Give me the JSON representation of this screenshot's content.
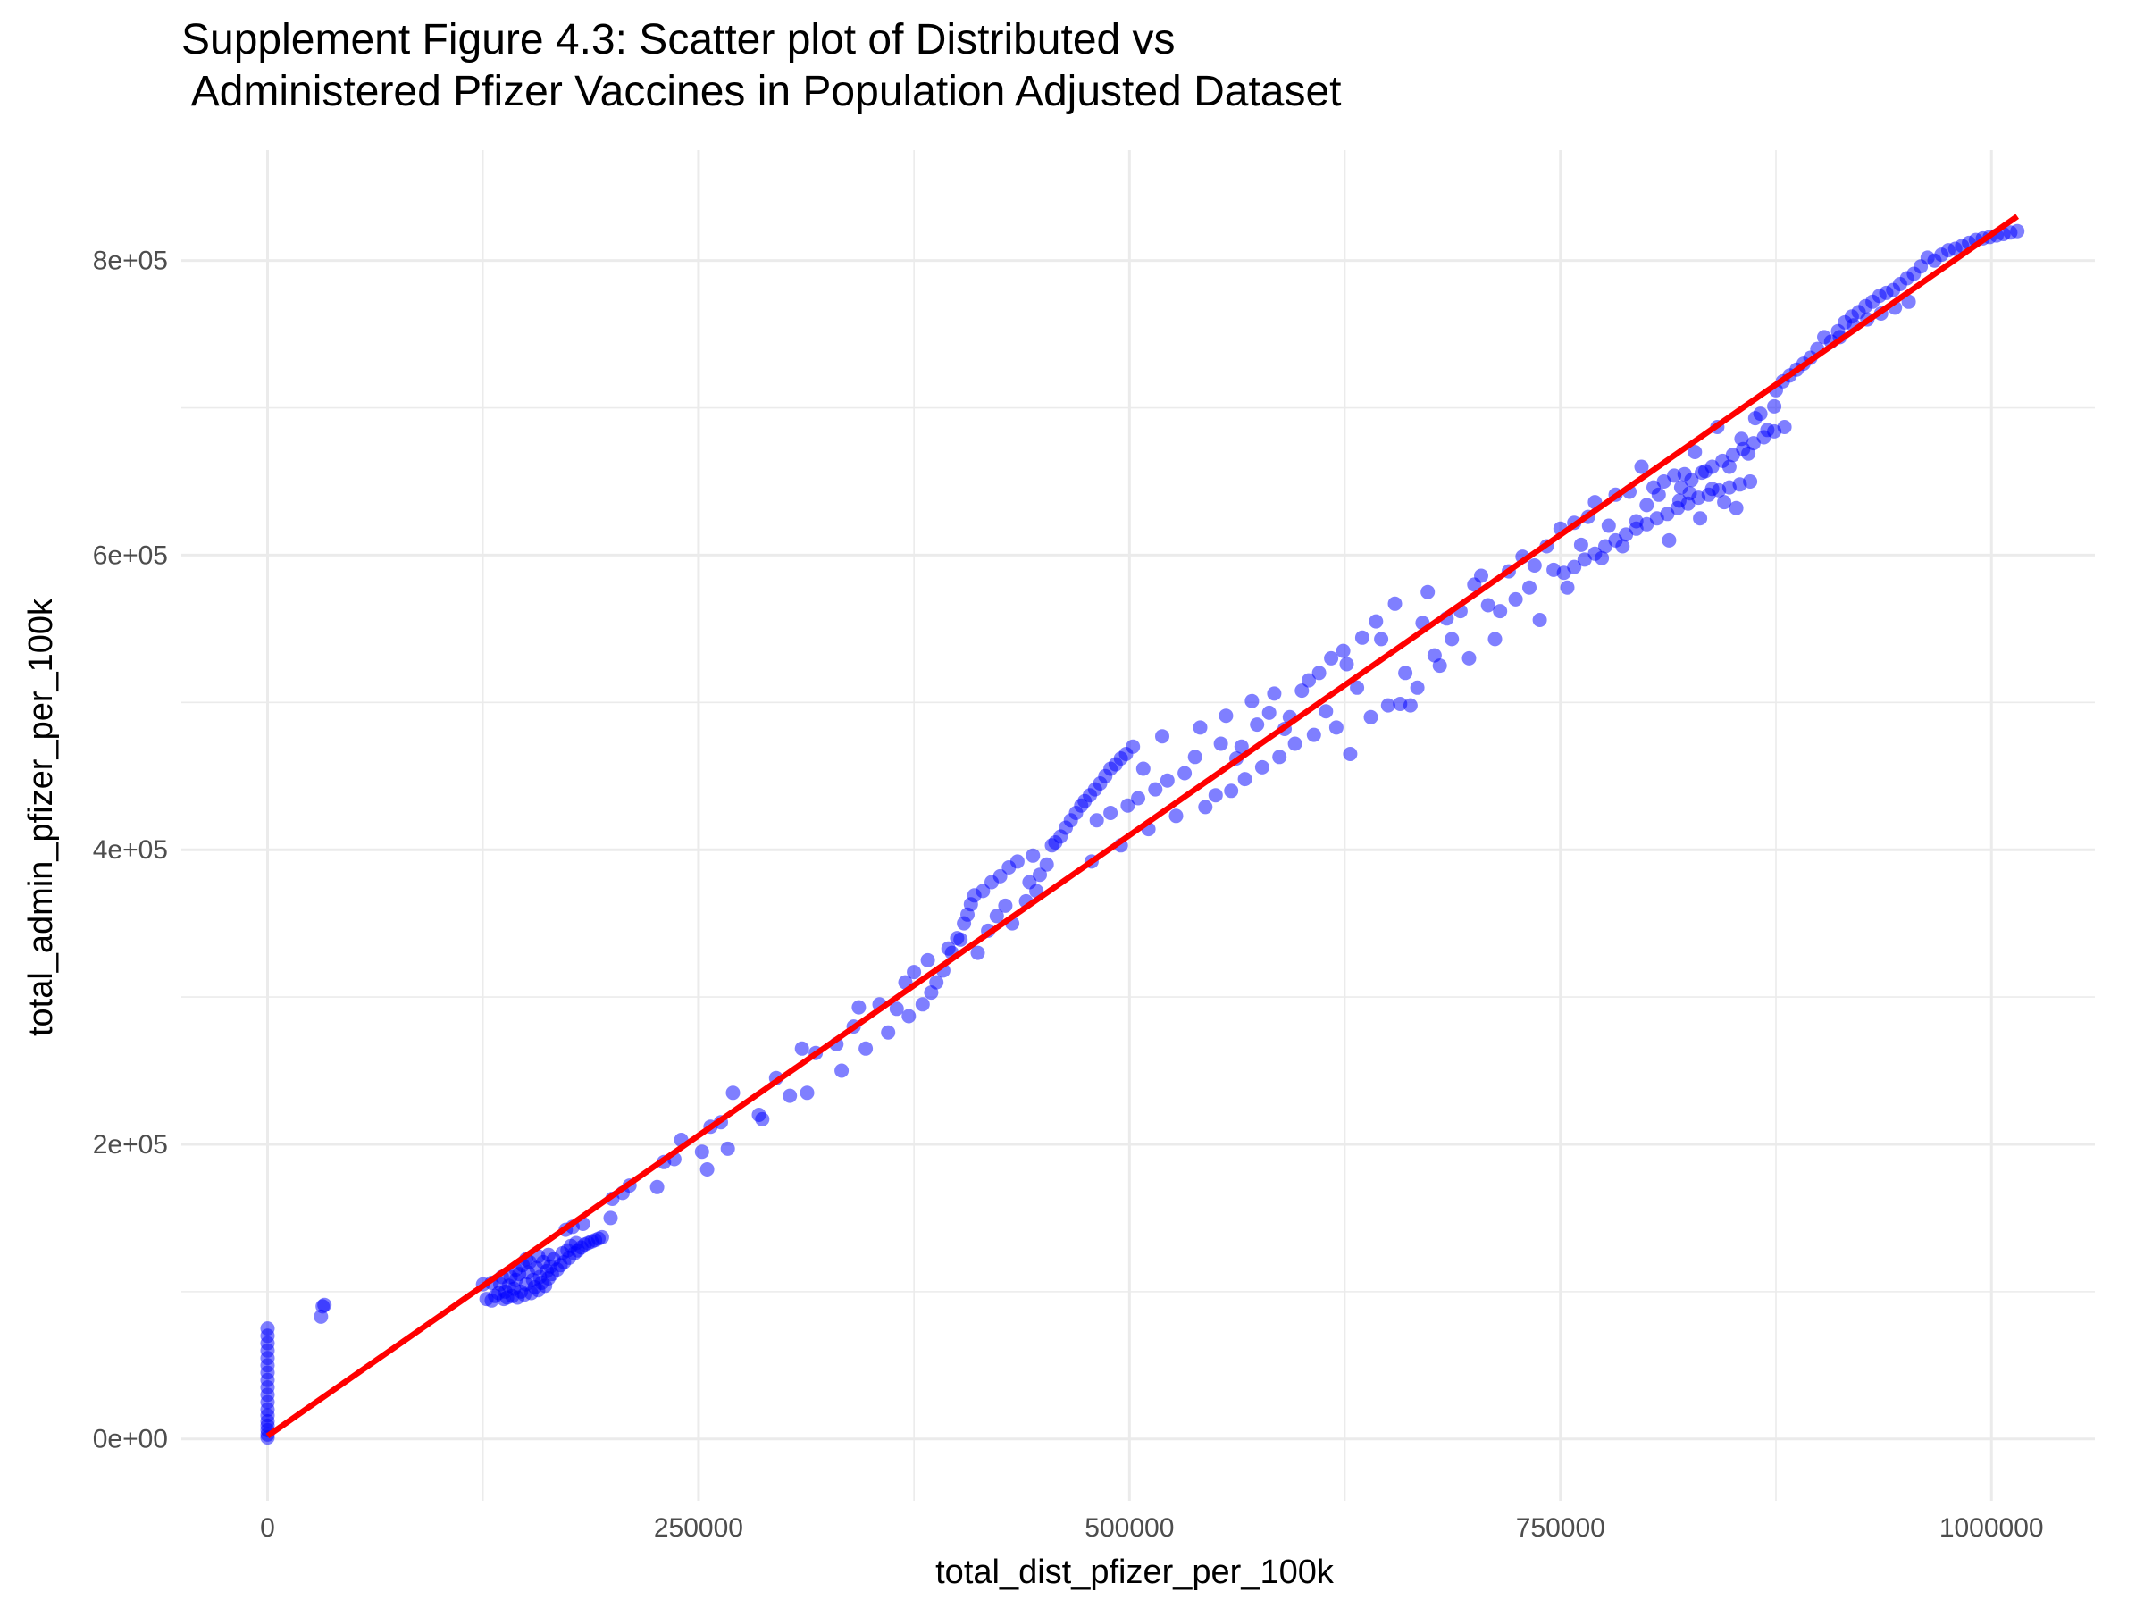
{
  "chart_data": {
    "type": "scatter",
    "title_lines": [
      "Supplement Figure 4.3: Scatter plot of Distributed vs",
      " Administered Pfizer Vaccines in Population Adjusted Dataset"
    ],
    "xlabel": "total_dist_pfizer_per_100k",
    "ylabel": "total_admin_pfizer_per_100k",
    "xlim": [
      -50000,
      1060000
    ],
    "ylim": [
      -42000,
      875000
    ],
    "x_ticks": [
      0,
      250000,
      500000,
      750000,
      1000000
    ],
    "x_tick_labels": [
      "0",
      "250000",
      "500000",
      "750000",
      "1000000"
    ],
    "y_ticks": [
      0,
      200000,
      400000,
      600000,
      800000
    ],
    "y_tick_labels": [
      "0e+00",
      "2e+05",
      "4e+05",
      "6e+05",
      "8e+05"
    ],
    "grid": true,
    "legend": "none",
    "colors": {
      "points": "#0000ff",
      "fit_line": "#ff0000",
      "grid": "#ebebeb"
    },
    "fit_line": {
      "x": [
        0,
        1015000
      ],
      "y": [
        2000,
        830000
      ]
    },
    "points": [
      [
        0,
        1000
      ],
      [
        0,
        3000
      ],
      [
        0,
        6000
      ],
      [
        0,
        9000
      ],
      [
        0,
        12000
      ],
      [
        0,
        16000
      ],
      [
        0,
        20000
      ],
      [
        0,
        25000
      ],
      [
        0,
        30000
      ],
      [
        0,
        35000
      ],
      [
        0,
        40000
      ],
      [
        0,
        45000
      ],
      [
        0,
        50000
      ],
      [
        0,
        55000
      ],
      [
        0,
        60000
      ],
      [
        0,
        65000
      ],
      [
        0,
        70000
      ],
      [
        0,
        75000
      ],
      [
        31000,
        83000
      ],
      [
        32000,
        90000
      ],
      [
        33000,
        91000
      ],
      [
        125000,
        105000
      ],
      [
        127000,
        95000
      ],
      [
        130000,
        94000
      ],
      [
        132000,
        97000
      ],
      [
        134000,
        99000
      ],
      [
        135000,
        105000
      ],
      [
        137000,
        95000
      ],
      [
        138000,
        100000
      ],
      [
        139000,
        96000
      ],
      [
        140000,
        104000
      ],
      [
        141000,
        110000
      ],
      [
        142000,
        97000
      ],
      [
        143000,
        102000
      ],
      [
        144000,
        108000
      ],
      [
        145000,
        96000
      ],
      [
        146000,
        112000
      ],
      [
        147000,
        100000
      ],
      [
        148000,
        118000
      ],
      [
        149000,
        98000
      ],
      [
        150000,
        105000
      ],
      [
        151000,
        113000
      ],
      [
        152000,
        120000
      ],
      [
        153000,
        99000
      ],
      [
        154000,
        108000
      ],
      [
        155000,
        103000
      ],
      [
        156000,
        116000
      ],
      [
        157000,
        101000
      ],
      [
        158000,
        110000
      ],
      [
        159000,
        106000
      ],
      [
        160000,
        120000
      ],
      [
        161000,
        104000
      ],
      [
        162000,
        114000
      ],
      [
        163000,
        109000
      ],
      [
        164000,
        117000
      ],
      [
        165000,
        112000
      ],
      [
        166000,
        122000
      ],
      [
        168000,
        115000
      ],
      [
        170000,
        118000
      ],
      [
        171000,
        126000
      ],
      [
        172000,
        120000
      ],
      [
        173000,
        142000
      ],
      [
        174000,
        128000
      ],
      [
        175000,
        123000
      ],
      [
        176000,
        131000
      ],
      [
        177000,
        144000
      ],
      [
        178000,
        126000
      ],
      [
        179000,
        133000
      ],
      [
        180000,
        128000
      ],
      [
        182000,
        130000
      ],
      [
        183000,
        146000
      ],
      [
        184000,
        132000
      ],
      [
        186000,
        133000
      ],
      [
        188000,
        134000
      ],
      [
        190000,
        135000
      ],
      [
        192000,
        136000
      ],
      [
        194000,
        137000
      ],
      [
        130000,
        106000
      ],
      [
        136000,
        110000
      ],
      [
        144000,
        115000
      ],
      [
        150000,
        122000
      ],
      [
        157000,
        124000
      ],
      [
        163000,
        125000
      ],
      [
        199000,
        150000
      ],
      [
        200000,
        163000
      ],
      [
        206000,
        167000
      ],
      [
        210000,
        172000
      ],
      [
        226000,
        171000
      ],
      [
        230000,
        188000
      ],
      [
        236000,
        190000
      ],
      [
        240000,
        203000
      ],
      [
        252000,
        195000
      ],
      [
        255000,
        183000
      ],
      [
        257000,
        212000
      ],
      [
        263000,
        215000
      ],
      [
        267000,
        197000
      ],
      [
        270000,
        235000
      ],
      [
        285000,
        220000
      ],
      [
        287000,
        217000
      ],
      [
        295000,
        245000
      ],
      [
        303000,
        233000
      ],
      [
        310000,
        265000
      ],
      [
        313000,
        235000
      ],
      [
        318000,
        262000
      ],
      [
        330000,
        268000
      ],
      [
        333000,
        250000
      ],
      [
        340000,
        280000
      ],
      [
        343000,
        293000
      ],
      [
        347000,
        265000
      ],
      [
        355000,
        295000
      ],
      [
        360000,
        276000
      ],
      [
        365000,
        292000
      ],
      [
        370000,
        310000
      ],
      [
        372000,
        287000
      ],
      [
        375000,
        317000
      ],
      [
        380000,
        295000
      ],
      [
        383000,
        325000
      ],
      [
        385000,
        303000
      ],
      [
        388000,
        310000
      ],
      [
        392000,
        318000
      ],
      [
        395000,
        333000
      ],
      [
        397000,
        330000
      ],
      [
        400000,
        340000
      ],
      [
        402000,
        339000
      ],
      [
        404000,
        350000
      ],
      [
        406000,
        356000
      ],
      [
        408000,
        363000
      ],
      [
        410000,
        369000
      ],
      [
        412000,
        330000
      ],
      [
        415000,
        372000
      ],
      [
        418000,
        345000
      ],
      [
        420000,
        378000
      ],
      [
        423000,
        355000
      ],
      [
        425000,
        382000
      ],
      [
        428000,
        362000
      ],
      [
        430000,
        388000
      ],
      [
        432000,
        350000
      ],
      [
        435000,
        392000
      ],
      [
        440000,
        365000
      ],
      [
        442000,
        378000
      ],
      [
        444000,
        396000
      ],
      [
        446000,
        372000
      ],
      [
        448000,
        383000
      ],
      [
        452000,
        390000
      ],
      [
        455000,
        403000
      ],
      [
        457000,
        405000
      ],
      [
        460000,
        409000
      ],
      [
        463000,
        415000
      ],
      [
        466000,
        420000
      ],
      [
        469000,
        425000
      ],
      [
        472000,
        430000
      ],
      [
        474000,
        433000
      ],
      [
        477000,
        437000
      ],
      [
        480000,
        441000
      ],
      [
        483000,
        445000
      ],
      [
        486000,
        450000
      ],
      [
        489000,
        455000
      ],
      [
        492000,
        458000
      ],
      [
        495000,
        462000
      ],
      [
        498000,
        465000
      ],
      [
        502000,
        470000
      ],
      [
        478000,
        392000
      ],
      [
        481000,
        420000
      ],
      [
        489000,
        425000
      ],
      [
        495000,
        403000
      ],
      [
        499000,
        430000
      ],
      [
        505000,
        435000
      ],
      [
        508000,
        455000
      ],
      [
        511000,
        414000
      ],
      [
        515000,
        441000
      ],
      [
        519000,
        477000
      ],
      [
        522000,
        447000
      ],
      [
        527000,
        423000
      ],
      [
        532000,
        452000
      ],
      [
        538000,
        463000
      ],
      [
        541000,
        483000
      ],
      [
        544000,
        429000
      ],
      [
        550000,
        437000
      ],
      [
        553000,
        472000
      ],
      [
        556000,
        491000
      ],
      [
        559000,
        440000
      ],
      [
        562000,
        462000
      ],
      [
        565000,
        470000
      ],
      [
        567000,
        448000
      ],
      [
        571000,
        501000
      ],
      [
        574000,
        485000
      ],
      [
        577000,
        456000
      ],
      [
        581000,
        493000
      ],
      [
        584000,
        506000
      ],
      [
        587000,
        463000
      ],
      [
        590000,
        482000
      ],
      [
        593000,
        490000
      ],
      [
        596000,
        472000
      ],
      [
        600000,
        508000
      ],
      [
        604000,
        515000
      ],
      [
        607000,
        478000
      ],
      [
        610000,
        520000
      ],
      [
        614000,
        494000
      ],
      [
        617000,
        530000
      ],
      [
        620000,
        483000
      ],
      [
        624000,
        535000
      ],
      [
        626000,
        526000
      ],
      [
        628000,
        465000
      ],
      [
        632000,
        510000
      ],
      [
        635000,
        544000
      ],
      [
        640000,
        490000
      ],
      [
        643000,
        555000
      ],
      [
        646000,
        543000
      ],
      [
        650000,
        498000
      ],
      [
        654000,
        567000
      ],
      [
        657000,
        499000
      ],
      [
        660000,
        520000
      ],
      [
        663000,
        498000
      ],
      [
        667000,
        510000
      ],
      [
        670000,
        554000
      ],
      [
        673000,
        575000
      ],
      [
        677000,
        532000
      ],
      [
        680000,
        525000
      ],
      [
        684000,
        557000
      ],
      [
        687000,
        543000
      ],
      [
        692000,
        562000
      ],
      [
        697000,
        530000
      ],
      [
        700000,
        580000
      ],
      [
        704000,
        586000
      ],
      [
        708000,
        566000
      ],
      [
        712000,
        543000
      ],
      [
        715000,
        562000
      ],
      [
        720000,
        589000
      ],
      [
        724000,
        570000
      ],
      [
        728000,
        599000
      ],
      [
        732000,
        578000
      ],
      [
        735000,
        593000
      ],
      [
        738000,
        556000
      ],
      [
        742000,
        606000
      ],
      [
        746000,
        590000
      ],
      [
        750000,
        618000
      ],
      [
        754000,
        578000
      ],
      [
        758000,
        622000
      ],
      [
        762000,
        607000
      ],
      [
        766000,
        626000
      ],
      [
        770000,
        636000
      ],
      [
        774000,
        598000
      ],
      [
        778000,
        620000
      ],
      [
        782000,
        641000
      ],
      [
        786000,
        606000
      ],
      [
        790000,
        643000
      ],
      [
        794000,
        623000
      ],
      [
        797000,
        660000
      ],
      [
        800000,
        634000
      ],
      [
        804000,
        646000
      ],
      [
        807000,
        641000
      ],
      [
        810000,
        650000
      ],
      [
        813000,
        610000
      ],
      [
        816000,
        654000
      ],
      [
        819000,
        637000
      ],
      [
        822000,
        655000
      ],
      [
        825000,
        642000
      ],
      [
        828000,
        670000
      ],
      [
        831000,
        625000
      ],
      [
        834000,
        657000
      ],
      [
        838000,
        645000
      ],
      [
        841000,
        687000
      ],
      [
        845000,
        636000
      ],
      [
        848000,
        660000
      ],
      [
        852000,
        632000
      ],
      [
        855000,
        679000
      ],
      [
        859000,
        669000
      ],
      [
        863000,
        693000
      ],
      [
        866000,
        696000
      ],
      [
        870000,
        685000
      ],
      [
        874000,
        701000
      ],
      [
        752000,
        588000
      ],
      [
        758000,
        592000
      ],
      [
        764000,
        597000
      ],
      [
        770000,
        601000
      ],
      [
        776000,
        606000
      ],
      [
        782000,
        610000
      ],
      [
        788000,
        614000
      ],
      [
        794000,
        618000
      ],
      [
        800000,
        621000
      ],
      [
        806000,
        625000
      ],
      [
        812000,
        628000
      ],
      [
        818000,
        632000
      ],
      [
        824000,
        635000
      ],
      [
        830000,
        639000
      ],
      [
        836000,
        641000
      ],
      [
        842000,
        644000
      ],
      [
        848000,
        646000
      ],
      [
        854000,
        648000
      ],
      [
        860000,
        650000
      ],
      [
        820000,
        646000
      ],
      [
        826000,
        651000
      ],
      [
        832000,
        656000
      ],
      [
        838000,
        660000
      ],
      [
        844000,
        664000
      ],
      [
        850000,
        668000
      ],
      [
        856000,
        672000
      ],
      [
        862000,
        676000
      ],
      [
        868000,
        680000
      ],
      [
        874000,
        684000
      ],
      [
        880000,
        687000
      ],
      [
        875000,
        712000
      ],
      [
        879000,
        718000
      ],
      [
        883000,
        722000
      ],
      [
        887000,
        726000
      ],
      [
        891000,
        730000
      ],
      [
        895000,
        734000
      ],
      [
        899000,
        740000
      ],
      [
        903000,
        748000
      ],
      [
        907000,
        745000
      ],
      [
        911000,
        752000
      ],
      [
        915000,
        758000
      ],
      [
        919000,
        762000
      ],
      [
        923000,
        765000
      ],
      [
        927000,
        769000
      ],
      [
        931000,
        772000
      ],
      [
        935000,
        776000
      ],
      [
        939000,
        778000
      ],
      [
        943000,
        780000
      ],
      [
        947000,
        784000
      ],
      [
        951000,
        788000
      ],
      [
        955000,
        791000
      ],
      [
        959000,
        796000
      ],
      [
        963000,
        802000
      ],
      [
        967000,
        800000
      ],
      [
        971000,
        804000
      ],
      [
        975000,
        807000
      ],
      [
        979000,
        808000
      ],
      [
        983000,
        810000
      ],
      [
        987000,
        812000
      ],
      [
        991000,
        814000
      ],
      [
        995000,
        815000
      ],
      [
        999000,
        816000
      ],
      [
        1003000,
        817000
      ],
      [
        1007000,
        818000
      ],
      [
        1011000,
        819000
      ],
      [
        1015000,
        820000
      ],
      [
        912000,
        748000
      ],
      [
        920000,
        756000
      ],
      [
        928000,
        760000
      ],
      [
        936000,
        764000
      ],
      [
        944000,
        768000
      ],
      [
        952000,
        772000
      ]
    ]
  }
}
